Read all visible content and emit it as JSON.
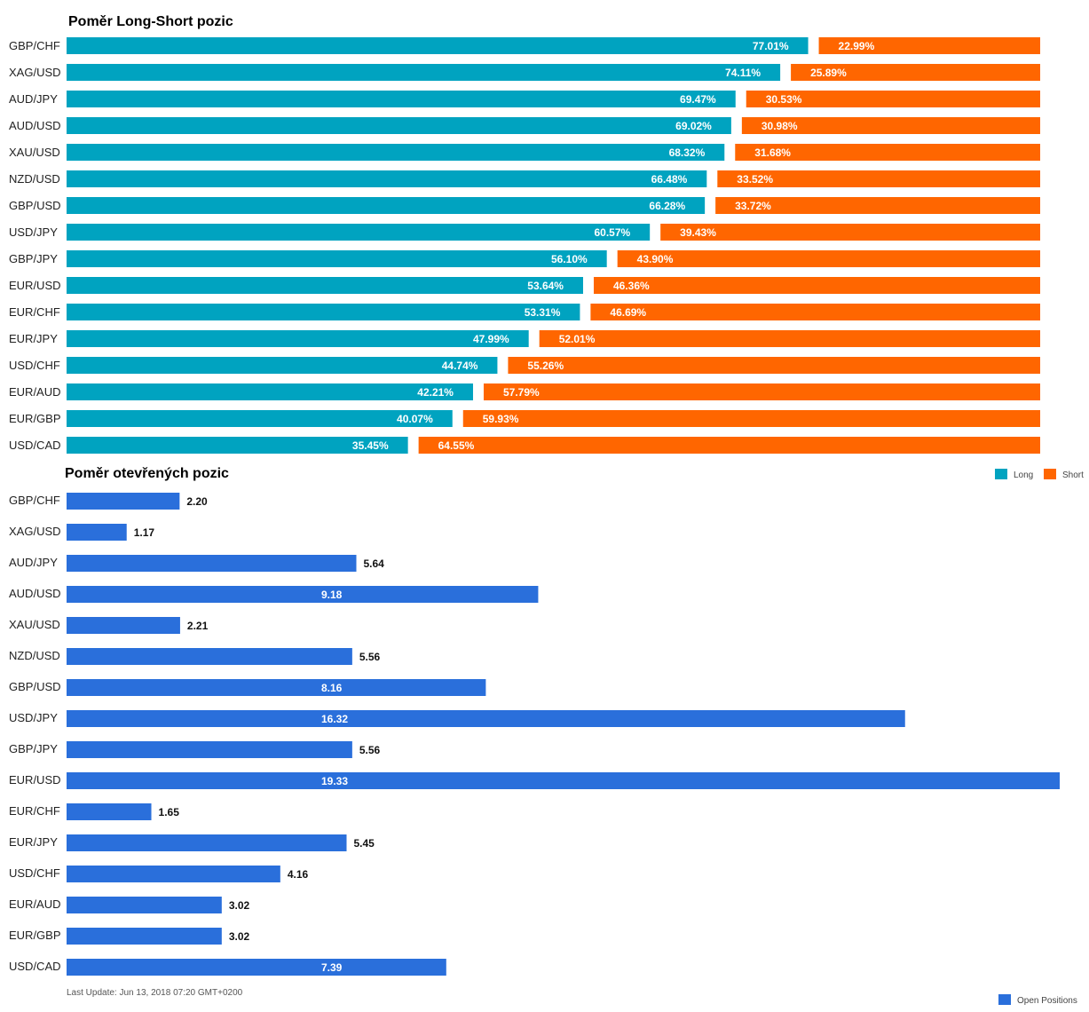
{
  "chart_data": [
    {
      "type": "bar",
      "title": "Poměr Long-Short pozic",
      "orientation": "horizontal",
      "stacked": true,
      "categories": [
        "GBP/CHF",
        "XAG/USD",
        "AUD/JPY",
        "AUD/USD",
        "XAU/USD",
        "NZD/USD",
        "GBP/USD",
        "USD/JPY",
        "GBP/JPY",
        "EUR/USD",
        "EUR/CHF",
        "EUR/JPY",
        "USD/CHF",
        "EUR/AUD",
        "EUR/GBP",
        "USD/CAD"
      ],
      "series": [
        {
          "name": "Long",
          "color": "#00a3c0",
          "values": [
            77.01,
            74.11,
            69.47,
            69.02,
            68.32,
            66.48,
            66.28,
            60.57,
            56.1,
            53.64,
            53.31,
            47.99,
            44.74,
            42.21,
            40.07,
            35.45
          ],
          "labels": [
            "77.01%",
            "74.11%",
            "69.47%",
            "69.02%",
            "68.32%",
            "66.48%",
            "66.28%",
            "60.57%",
            "56.10%",
            "53.64%",
            "53.31%",
            "47.99%",
            "44.74%",
            "42.21%",
            "40.07%",
            "35.45%"
          ]
        },
        {
          "name": "Short",
          "color": "#ff6600",
          "values": [
            22.99,
            25.89,
            30.53,
            30.98,
            31.68,
            33.52,
            33.72,
            39.43,
            43.9,
            46.36,
            46.69,
            52.01,
            55.26,
            57.79,
            59.93,
            64.55
          ],
          "labels": [
            "22.99%",
            "25.89%",
            "30.53%",
            "30.98%",
            "31.68%",
            "33.52%",
            "33.72%",
            "39.43%",
            "43.90%",
            "46.36%",
            "46.69%",
            "52.01%",
            "55.26%",
            "57.79%",
            "59.93%",
            "64.55%"
          ]
        }
      ],
      "legend": "bottom-right"
    },
    {
      "type": "bar",
      "title": "Poměr otevřených pozic",
      "orientation": "horizontal",
      "categories": [
        "GBP/CHF",
        "XAG/USD",
        "AUD/JPY",
        "AUD/USD",
        "XAU/USD",
        "NZD/USD",
        "GBP/USD",
        "USD/JPY",
        "GBP/JPY",
        "EUR/USD",
        "EUR/CHF",
        "EUR/JPY",
        "USD/CHF",
        "EUR/AUD",
        "EUR/GBP",
        "USD/CAD"
      ],
      "series": [
        {
          "name": "Open Positions",
          "color": "#2a6fdb",
          "values": [
            2.2,
            1.17,
            5.64,
            9.18,
            2.21,
            5.56,
            8.16,
            16.32,
            5.56,
            19.33,
            1.65,
            5.45,
            4.16,
            3.02,
            3.02,
            7.39
          ],
          "labels": [
            "2.20",
            "1.17",
            "5.64",
            "9.18",
            "2.21",
            "5.56",
            "8.16",
            "16.32",
            "5.56",
            "19.33",
            "1.65",
            "5.45",
            "4.16",
            "3.02",
            "3.02",
            "7.39"
          ]
        }
      ],
      "xlim": [
        0,
        19.33
      ],
      "legend": "bottom-right"
    }
  ],
  "footer": {
    "last_update": "Last Update: Jun 13, 2018 07:20 GMT+0200"
  }
}
